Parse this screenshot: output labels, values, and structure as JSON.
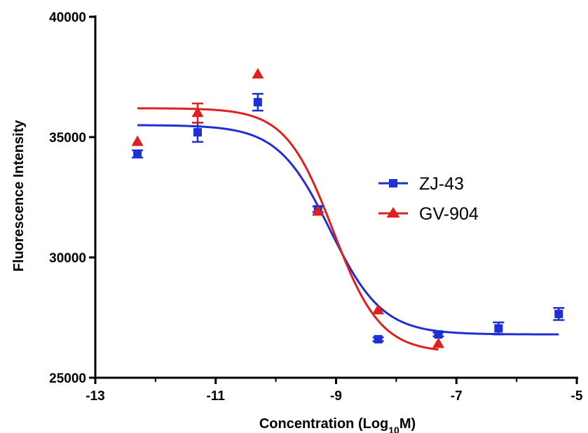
{
  "chart_data": {
    "type": "scatter",
    "title": "",
    "xlabel": "Concentration (Log",
    "xlabel_sub": "10",
    "xlabel_tail": "M)",
    "ylabel": "Fluorescence Intensity",
    "xlim": [
      -13,
      -5
    ],
    "ylim": [
      25000,
      40000
    ],
    "x_ticks": [
      "-13",
      "-11",
      "-9",
      "-7",
      "-5"
    ],
    "x_tick_values": [
      -13,
      -11,
      -9,
      -7,
      -5
    ],
    "y_ticks": [
      "25000",
      "30000",
      "35000",
      "40000"
    ],
    "y_tick_values": [
      25000,
      30000,
      35000,
      40000
    ],
    "grid": false,
    "legend_position": "right",
    "series": [
      {
        "name": "ZJ-43",
        "color": "#1f2fd6",
        "marker": "square",
        "x": [
          -12.3,
          -11.3,
          -10.3,
          -9.3,
          -8.3,
          -7.3,
          -6.3,
          -5.3
        ],
        "y": [
          34300,
          35200,
          36450,
          32000,
          26600,
          26800,
          27050,
          27650
        ],
        "err": [
          150,
          400,
          350,
          120,
          80,
          80,
          250,
          250
        ],
        "fit": {
          "top": 35500,
          "bottom": 26800,
          "logEC50": -9.1,
          "hill": 1.0
        }
      },
      {
        "name": "GV-904",
        "color": "#e01f1f",
        "marker": "triangle",
        "x": [
          -12.3,
          -11.3,
          -10.3,
          -9.3,
          -8.3,
          -7.3
        ],
        "y": [
          34800,
          36000,
          37600,
          31900,
          27800,
          26400
        ],
        "err": [
          0,
          400,
          0,
          0,
          0,
          0
        ],
        "fit": {
          "top": 36200,
          "bottom": 26050,
          "logEC50": -9.05,
          "hill": 1.1
        }
      }
    ]
  }
}
